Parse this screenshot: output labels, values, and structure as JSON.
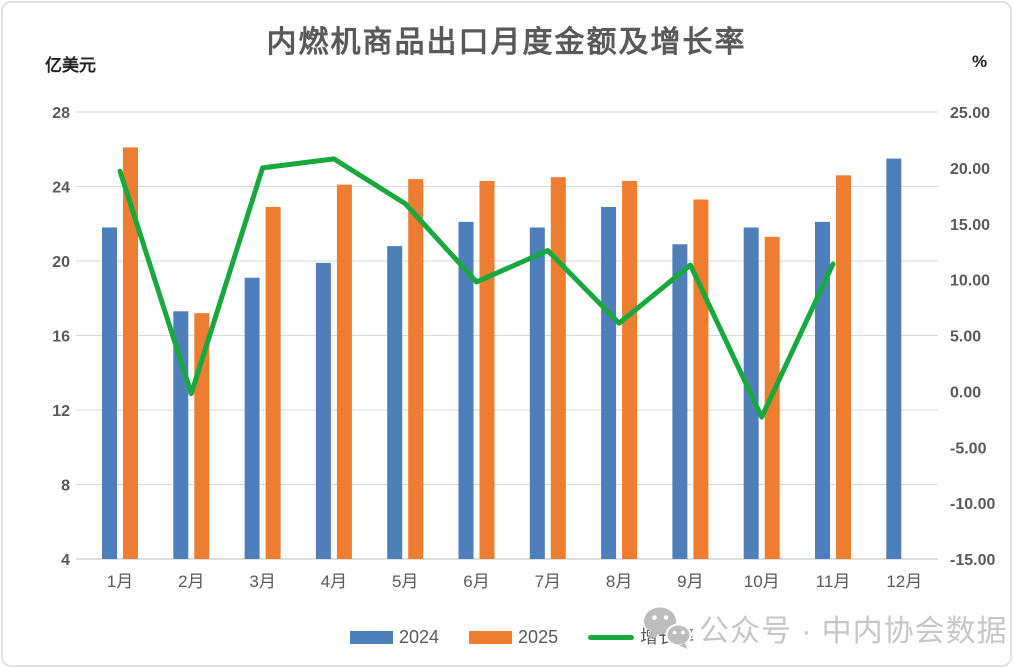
{
  "title": "内燃机商品出口月度金额及增长率",
  "axes": {
    "left_unit": "亿美元",
    "right_unit": "%"
  },
  "watermark": {
    "icon": "wechat-icon",
    "text": "公众号 · 中内协会数据"
  },
  "colors": {
    "bar_2024": "#4E7FBA",
    "bar_2025": "#ED7D31",
    "growth_line": "#17A83E",
    "gridline": "#D9D9D9",
    "axis_line": "#BFBFBF",
    "axis_text": "#595959",
    "title_text": "#595959",
    "watermark_text": "#C6C6C6"
  },
  "chart_data": {
    "type": "bar",
    "title": "内燃机商品出口月度金额及增长率",
    "categories": [
      "1月",
      "2月",
      "3月",
      "4月",
      "5月",
      "6月",
      "7月",
      "8月",
      "9月",
      "10月",
      "11月",
      "12月"
    ],
    "series": [
      {
        "name": "2024",
        "type": "bar",
        "axis": "left",
        "color": "#4E7FBA",
        "values": [
          21.8,
          17.3,
          19.1,
          19.9,
          20.8,
          22.1,
          21.8,
          22.9,
          20.9,
          21.8,
          22.1,
          25.5
        ]
      },
      {
        "name": "2025",
        "type": "bar",
        "axis": "left",
        "color": "#ED7D31",
        "values": [
          26.1,
          17.2,
          22.9,
          24.1,
          24.4,
          24.3,
          24.5,
          24.3,
          23.3,
          21.3,
          24.6,
          null
        ]
      },
      {
        "name": "增长率",
        "type": "line",
        "axis": "right",
        "color": "#17A83E",
        "values": [
          19.7,
          -0.2,
          20.0,
          20.8,
          16.8,
          9.8,
          12.6,
          6.1,
          11.3,
          -2.3,
          11.4,
          null
        ]
      }
    ],
    "left_axis": {
      "label": "亿美元",
      "min": 4,
      "max": 28,
      "step": 4,
      "tick_labels": [
        "28",
        "24",
        "20",
        "16",
        "12",
        "8",
        "4"
      ]
    },
    "right_axis": {
      "label": "%",
      "min": -15,
      "max": 25,
      "step": 5,
      "tick_labels": [
        "25.00",
        "20.00",
        "15.00",
        "10.00",
        "5.00",
        "0.00",
        "-5.00",
        "-10.00",
        "-15.00"
      ]
    },
    "grid": true,
    "legend_position": "bottom"
  }
}
